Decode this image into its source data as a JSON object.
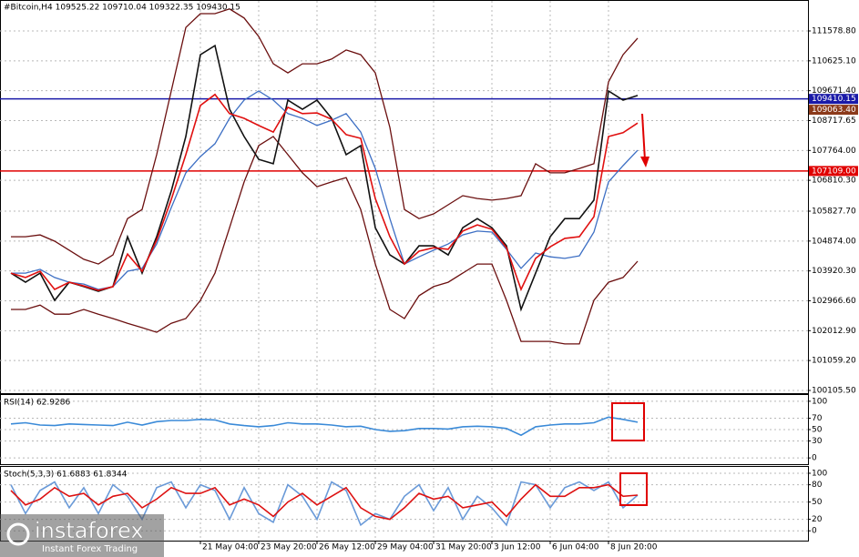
{
  "chart_data": [
    {
      "type": "line",
      "title": "#Bitcoin,H4  109525.22 109710.04 109322.35 109430.15",
      "categories": [
        null,
        null,
        null,
        null,
        null,
        null,
        null,
        null,
        null,
        null,
        null,
        null,
        null,
        "21 May 04:00",
        null,
        null,
        null,
        "23 May 20:00",
        null,
        null,
        null,
        "26 May 12:00",
        null,
        null,
        null,
        "29 May 04:00",
        null,
        null,
        null,
        "31 May 20:00",
        null,
        null,
        null,
        "3 Jun 12:00",
        null,
        null,
        null,
        "6 Jun 04:00",
        null,
        null,
        null,
        "8 Jun 20:00",
        null,
        null
      ],
      "ylim": [
        100018,
        112566
      ],
      "yticks": [
        {
          "value": 111578.8,
          "label": "111578.80"
        },
        {
          "value": 110625.1,
          "label": "110625.10"
        },
        {
          "value": 109671.4,
          "label": "109671.40"
        },
        108717.65,
        {
          "value": 107764,
          "label": "107764.00"
        },
        {
          "value": 106810.3,
          "label": "106810.30"
        },
        {
          "value": 105827.7,
          "label": "105827.70"
        },
        {
          "value": 104874,
          "label": "104874.00"
        },
        {
          "value": 103920.3,
          "label": "103920.30"
        },
        {
          "value": 102966.6,
          "label": "102966.60"
        },
        {
          "value": 102012.9,
          "label": "102012.90"
        },
        {
          "value": 101059.2,
          "label": "101059.20"
        },
        {
          "value": 100105.5,
          "label": "100105.50"
        }
      ],
      "grid": true,
      "series": [
        {
          "color": "#6b0f0f",
          "values": [
            105010,
            105010,
            105070,
            104870,
            104580,
            104290,
            104140,
            104430,
            105590,
            105880,
            107630,
            109660,
            111690,
            112130,
            112130,
            112280,
            111990,
            111400,
            110530,
            110240,
            110530,
            110530,
            110680,
            110970,
            110820,
            110240,
            108500,
            105880,
            105590,
            105740,
            106030,
            106320,
            106230,
            106180,
            106230,
            106320,
            107340,
            107050,
            107050,
            107190,
            107340,
            109950,
            110820,
            111350
          ]
        },
        {
          "color": "#6b0f0f",
          "values": [
            102690,
            102690,
            102830,
            102540,
            102540,
            102690,
            102540,
            102400,
            102250,
            102110,
            101960,
            102250,
            102400,
            102980,
            103850,
            105300,
            106760,
            107920,
            108210,
            107630,
            107050,
            106610,
            106760,
            106900,
            105880,
            104140,
            102690,
            102400,
            103130,
            103420,
            103560,
            103850,
            104140,
            104140,
            102980,
            101670,
            101670,
            101670,
            101590,
            101590,
            102980,
            103560,
            103710,
            104230
          ]
        },
        {
          "color": "#3d6fc4",
          "values": [
            103850,
            103850,
            103970,
            103710,
            103560,
            103500,
            103330,
            103420,
            103910,
            104000,
            104780,
            105940,
            107050,
            107570,
            107980,
            108790,
            109370,
            109660,
            109370,
            108940,
            108790,
            108560,
            108730,
            108940,
            108350,
            107190,
            105590,
            104140,
            104370,
            104580,
            104780,
            105070,
            105190,
            105160,
            104610,
            104000,
            104490,
            104370,
            104320,
            104400,
            105160,
            106760,
            107280,
            107770
          ]
        },
        {
          "color": "#111111",
          "values": [
            103850,
            103560,
            103850,
            102980,
            103560,
            103420,
            103270,
            103420,
            105010,
            103850,
            105010,
            106470,
            108210,
            110820,
            111110,
            109080,
            108210,
            107480,
            107340,
            109370,
            109080,
            109370,
            108790,
            107630,
            107920,
            105300,
            104430,
            104140,
            104720,
            104720,
            104430,
            105300,
            105590,
            105300,
            104720,
            102690,
            103850,
            105010,
            105590,
            105590,
            106180,
            109660,
            109370,
            109520
          ]
        },
        {
          "color": "#e01010",
          "values": [
            103850,
            103710,
            103910,
            103330,
            103560,
            103440,
            103300,
            103420,
            104460,
            103910,
            104900,
            106200,
            107630,
            109200,
            109550,
            108940,
            108790,
            108560,
            108350,
            109140,
            108940,
            108960,
            108760,
            108270,
            108150,
            106230,
            105010,
            104140,
            104550,
            104660,
            104610,
            105190,
            105390,
            105250,
            104660,
            103330,
            104320,
            104690,
            104960,
            105010,
            105650,
            108210,
            108330,
            108640
          ]
        }
      ],
      "levels": [
        {
          "value": 109410.15,
          "color": "#1a1aa8",
          "line": true
        },
        {
          "value": 109063.4,
          "label": "109063.40",
          "color": "#8b3a1a",
          "line": false
        },
        {
          "value": 107109,
          "label": "107109.00",
          "color": "#e00000",
          "line": true
        }
      ]
    },
    {
      "type": "line",
      "title": "RSI(14) 62.9286",
      "ylim": [
        -11,
        111
      ],
      "yticks": [
        100,
        70,
        50,
        30,
        0
      ],
      "grid": true,
      "series": [
        {
          "color": "#3a8ad8",
          "values": [
            60,
            62,
            58,
            57,
            60,
            59,
            58,
            57,
            63,
            58,
            64,
            66,
            66,
            68,
            67,
            60,
            57,
            55,
            57,
            62,
            60,
            60,
            58,
            55,
            56,
            50,
            47,
            48,
            52,
            52,
            51,
            55,
            56,
            55,
            52,
            40,
            55,
            58,
            60,
            60,
            62,
            72,
            68,
            63
          ]
        }
      ]
    },
    {
      "type": "line",
      "title": "Stoch(5,3,3) 61.6883 61.8344",
      "ylim": [
        -17,
        111
      ],
      "yticks": [
        100,
        80,
        50,
        20,
        0
      ],
      "grid": true,
      "series": [
        {
          "color": "#6a9ad8",
          "values": [
            80,
            30,
            70,
            85,
            40,
            75,
            30,
            80,
            60,
            20,
            75,
            85,
            40,
            80,
            70,
            20,
            75,
            30,
            15,
            80,
            60,
            20,
            85,
            70,
            10,
            30,
            20,
            60,
            80,
            35,
            75,
            20,
            60,
            40,
            10,
            85,
            80,
            40,
            75,
            85,
            70,
            85,
            40,
            62
          ]
        },
        {
          "color": "#dd1111",
          "values": [
            70,
            45,
            55,
            75,
            60,
            65,
            45,
            60,
            65,
            40,
            55,
            75,
            65,
            65,
            75,
            45,
            55,
            45,
            25,
            50,
            65,
            45,
            60,
            75,
            40,
            25,
            20,
            40,
            65,
            55,
            60,
            40,
            45,
            50,
            25,
            55,
            80,
            60,
            60,
            75,
            75,
            80,
            60,
            62
          ]
        }
      ]
    }
  ],
  "watermark": {
    "brand": "instaforex",
    "tagline": "Instant Forex Trading"
  }
}
